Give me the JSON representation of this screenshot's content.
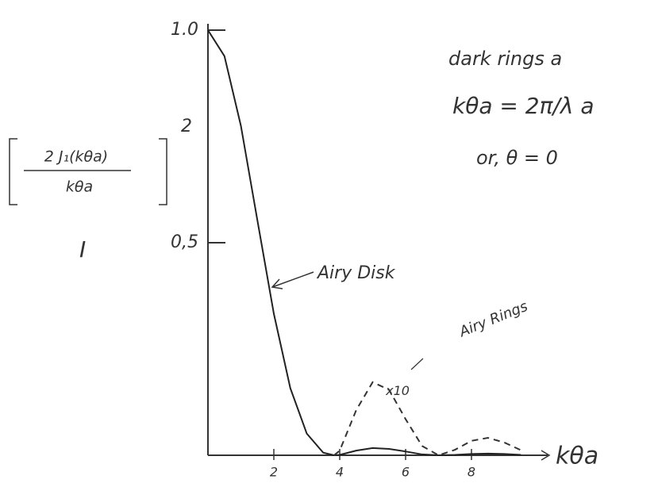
{
  "chart_data": {
    "type": "line",
    "ylabel": {
      "numerator": "2 J₁(kθa)",
      "denominator": "kθa",
      "exponent": "2"
    },
    "ylabel_symbol": "I",
    "xlabel": "kθa",
    "annotations": {
      "disk": "Airy Disk",
      "rings": "Airy Rings",
      "note_1": "dark rings a",
      "note_2": "kθa = 2π/λ a",
      "note_3": "or, θ = 0"
    },
    "x": [
      0,
      0.5,
      1,
      1.5,
      2,
      2.5,
      3,
      3.5,
      3.83,
      4,
      4.5,
      5,
      5.5,
      6,
      6.5,
      7,
      7.5,
      8,
      8.5,
      9,
      9.5
    ],
    "series": [
      {
        "color": "#222222",
        "dashed": false,
        "values": [
          1,
          0.939,
          0.775,
          0.553,
          0.333,
          0.158,
          0.051,
          0.006,
          0,
          0.001,
          0.011,
          0.017,
          0.015,
          0.009,
          0.002,
          0,
          0.001,
          0.003,
          0.004,
          0.003,
          0.001
        ]
      },
      {
        "name": "x10",
        "color": "#333333",
        "dashed": true,
        "values": [
          null,
          null,
          null,
          null,
          null,
          null,
          null,
          null,
          0,
          0.011,
          0.106,
          0.172,
          0.154,
          0.085,
          0.022,
          0,
          0.013,
          0.034,
          0.041,
          0.03,
          0.012
        ]
      }
    ],
    "xlim": [
      0,
      10
    ],
    "ylim": [
      0,
      1
    ],
    "xticks": [
      2,
      4,
      6,
      8
    ],
    "yticks": [
      {
        "value": 0.5,
        "label": "0,5"
      },
      {
        "value": 1,
        "label": "1.0"
      }
    ]
  }
}
